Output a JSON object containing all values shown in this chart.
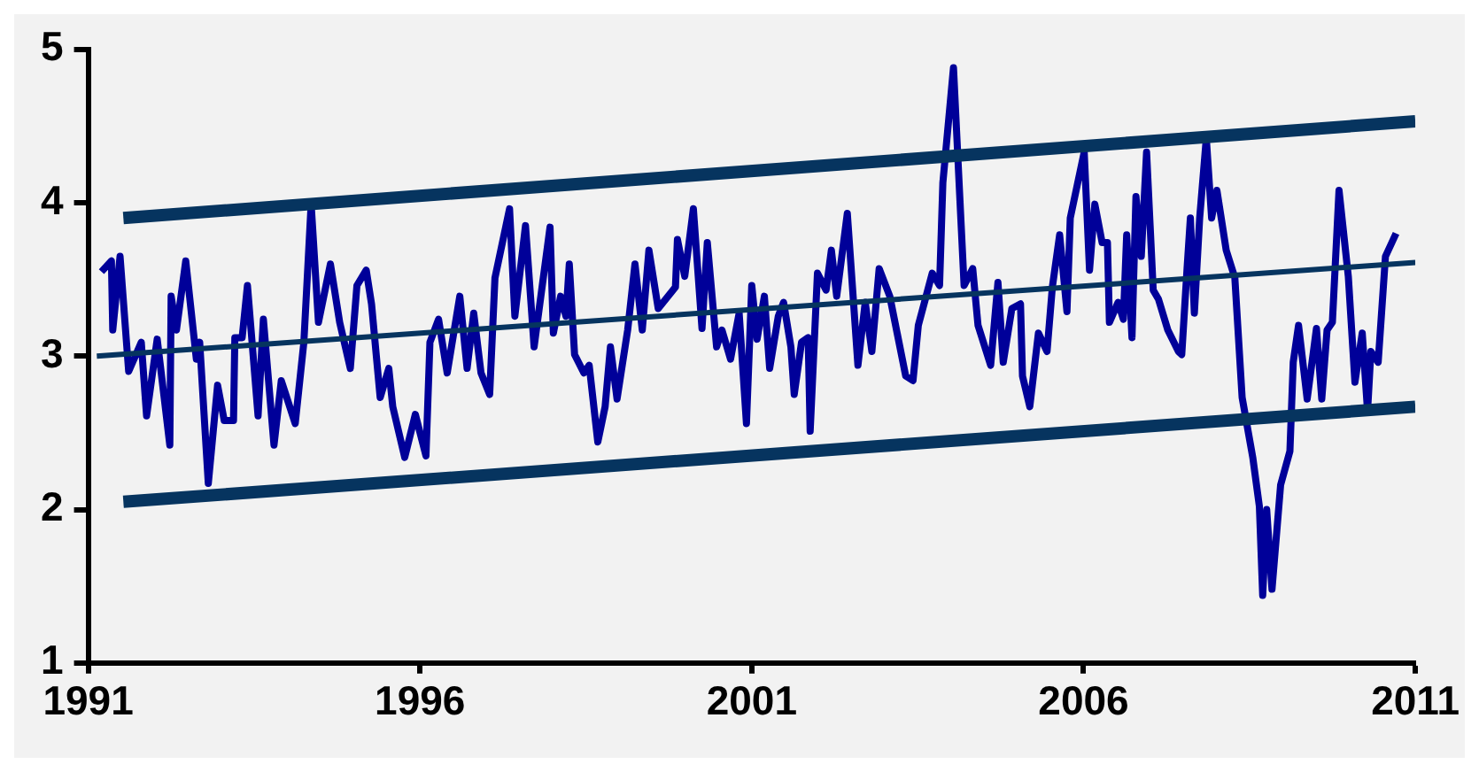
{
  "chart_data": {
    "type": "line",
    "xlim": [
      1991,
      2011
    ],
    "xticks": [
      1991,
      1996,
      2001,
      2006,
      2011
    ],
    "ylim": [
      1,
      5
    ],
    "yticks": [
      1,
      2,
      3,
      4,
      5
    ],
    "grid": false,
    "legend": false,
    "marker": "none",
    "series": [
      {
        "color": "#000099",
        "x": [
          1991.2,
          1991.35,
          1991.37,
          1991.48,
          1991.61,
          1991.8,
          1991.88,
          1992.04,
          1992.23,
          1992.25,
          1992.33,
          1992.47,
          1992.63,
          1992.68,
          1992.81,
          1992.95,
          1993.05,
          1993.19,
          1993.21,
          1993.32,
          1993.4,
          1993.56,
          1993.64,
          1993.8,
          1993.91,
          1994.12,
          1994.25,
          1994.36,
          1994.47,
          1994.65,
          1994.79,
          1994.95,
          1995.05,
          1995.19,
          1995.27,
          1995.4,
          1995.53,
          1995.59,
          1995.77,
          1995.93,
          1996.09,
          1996.15,
          1996.28,
          1996.41,
          1996.6,
          1996.71,
          1996.81,
          1996.92,
          1997.05,
          1997.13,
          1997.35,
          1997.43,
          1997.59,
          1997.72,
          1997.96,
          1998.01,
          1998.12,
          1998.2,
          1998.25,
          1998.33,
          1998.47,
          1998.55,
          1998.68,
          1998.79,
          1998.87,
          1998.97,
          1999.13,
          1999.24,
          1999.35,
          1999.45,
          1999.59,
          1999.85,
          1999.88,
          1999.99,
          2000.12,
          2000.25,
          2000.33,
          2000.47,
          2000.55,
          2000.68,
          2000.81,
          2000.92,
          2001.0,
          2001.08,
          2001.19,
          2001.27,
          2001.4,
          2001.48,
          2001.59,
          2001.64,
          2001.75,
          2001.85,
          2001.88,
          2001.99,
          2002.12,
          2002.2,
          2002.28,
          2002.44,
          2002.6,
          2002.71,
          2002.81,
          2002.92,
          2003.08,
          2003.32,
          2003.43,
          2003.51,
          2003.72,
          2003.83,
          2003.88,
          2004.04,
          2004.2,
          2004.33,
          2004.41,
          2004.6,
          2004.71,
          2004.79,
          2004.92,
          2005.05,
          2005.08,
          2005.19,
          2005.32,
          2005.45,
          2005.53,
          2005.64,
          2005.75,
          2005.8,
          2006.01,
          2006.09,
          2006.17,
          2006.28,
          2006.36,
          2006.39,
          2006.52,
          2006.6,
          2006.65,
          2006.73,
          2006.79,
          2006.87,
          2006.95,
          2007.05,
          2007.13,
          2007.27,
          2007.43,
          2007.48,
          2007.56,
          2007.61,
          2007.67,
          2007.75,
          2007.85,
          2007.93,
          2008.01,
          2008.15,
          2008.28,
          2008.39,
          2008.55,
          2008.65,
          2008.7,
          2008.76,
          2008.84,
          2008.97,
          2009.11,
          2009.16,
          2009.24,
          2009.37,
          2009.51,
          2009.59,
          2009.67,
          2009.75,
          2009.85,
          2009.99,
          2010.09,
          2010.2,
          2010.28,
          2010.33,
          2010.44,
          2010.55,
          2010.71
        ],
        "values": [
          3.55,
          3.62,
          3.17,
          3.65,
          2.9,
          3.09,
          2.61,
          3.11,
          2.42,
          3.39,
          3.17,
          3.62,
          2.98,
          3.09,
          2.17,
          2.81,
          2.58,
          2.58,
          3.12,
          3.12,
          3.46,
          2.61,
          3.24,
          2.42,
          2.84,
          2.56,
          3.09,
          3.99,
          3.22,
          3.6,
          3.22,
          2.92,
          3.46,
          3.56,
          3.34,
          2.73,
          2.92,
          2.67,
          2.34,
          2.62,
          2.35,
          3.09,
          3.24,
          2.89,
          3.39,
          2.92,
          3.28,
          2.89,
          2.75,
          3.51,
          3.96,
          3.26,
          3.85,
          3.06,
          3.84,
          3.15,
          3.39,
          3.26,
          3.6,
          3.01,
          2.89,
          2.94,
          2.44,
          2.67,
          3.06,
          2.72,
          3.17,
          3.6,
          3.17,
          3.69,
          3.31,
          3.45,
          3.76,
          3.52,
          3.96,
          3.18,
          3.74,
          3.06,
          3.17,
          2.98,
          3.28,
          2.56,
          3.46,
          3.11,
          3.39,
          2.92,
          3.26,
          3.35,
          3.06,
          2.75,
          3.09,
          3.12,
          2.51,
          3.54,
          3.43,
          3.69,
          3.39,
          3.93,
          2.94,
          3.35,
          3.03,
          3.57,
          3.39,
          2.87,
          2.84,
          3.2,
          3.54,
          3.46,
          4.13,
          4.88,
          3.46,
          3.57,
          3.2,
          2.94,
          3.48,
          2.96,
          3.31,
          3.34,
          2.87,
          2.67,
          3.15,
          3.03,
          3.45,
          3.79,
          3.29,
          3.9,
          4.33,
          3.56,
          3.99,
          3.74,
          3.74,
          3.22,
          3.35,
          3.24,
          3.79,
          3.12,
          4.04,
          3.65,
          4.33,
          3.43,
          3.37,
          3.17,
          3.03,
          3.01,
          3.57,
          3.9,
          3.28,
          3.9,
          4.42,
          3.9,
          4.08,
          3.69,
          3.51,
          2.73,
          2.34,
          2.02,
          1.44,
          2.0,
          1.48,
          2.16,
          2.38,
          2.96,
          3.2,
          2.72,
          3.18,
          2.72,
          3.17,
          3.22,
          4.08,
          3.52,
          2.83,
          3.15,
          2.64,
          3.03,
          2.96,
          3.65,
          3.8
        ]
      },
      {
        "type": "line",
        "color": "#06345f",
        "x": [
          1991.53,
          2011
        ],
        "values": [
          3.9,
          4.53
        ]
      },
      {
        "type": "line",
        "color": "#06345f",
        "x": [
          1991.13,
          2011
        ],
        "values": [
          3.0,
          3.61
        ]
      },
      {
        "type": "line",
        "color": "#06345f",
        "x": [
          1991.53,
          2011
        ],
        "values": [
          2.05,
          2.67
        ]
      }
    ]
  }
}
